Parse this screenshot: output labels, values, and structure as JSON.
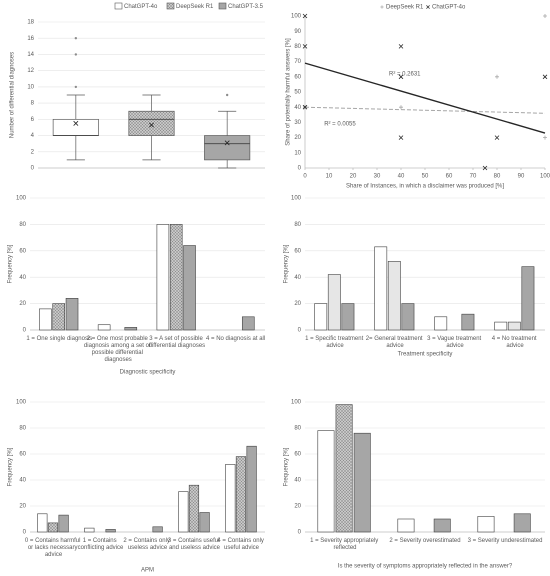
{
  "chart_data": [
    {
      "type": "box",
      "ylabel": "Number of differential diagnoses",
      "ylim": [
        0,
        18
      ],
      "yticks": [
        0,
        2,
        4,
        6,
        8,
        10,
        12,
        14,
        16,
        18
      ],
      "grid": true,
      "legend": "top",
      "series": [
        {
          "name": "ChatGPT-4o",
          "color": "#ffffff",
          "min": 1,
          "q1": 4,
          "median": 4,
          "q3": 6,
          "max": 9,
          "mean": 5.5,
          "outliers": [
            10,
            14,
            16
          ]
        },
        {
          "name": "DeepSeek R1",
          "color": "#c8c8c8",
          "pattern": "hatch",
          "min": 1,
          "q1": 4,
          "median": 6,
          "q3": 7,
          "max": 9,
          "mean": 5.3,
          "outliers": []
        },
        {
          "name": "ChatGPT-3.5",
          "color": "#a6a6a6",
          "min": 0,
          "q1": 1,
          "median": 3,
          "q3": 4,
          "max": 7,
          "mean": 3.1,
          "outliers": [
            9
          ]
        }
      ]
    },
    {
      "type": "scatter",
      "xlabel": "Share of Instances, in which a disclaimer was produced [%]",
      "ylabel": "Share of potentially harmful answers [%]",
      "xlim": [
        0,
        100
      ],
      "xticks": [
        0,
        10,
        20,
        30,
        40,
        50,
        60,
        70,
        80,
        90,
        100
      ],
      "ylim": [
        0,
        100
      ],
      "yticks": [
        0,
        10,
        20,
        30,
        40,
        50,
        60,
        70,
        80,
        90,
        100
      ],
      "legend": "top",
      "series": [
        {
          "name": "DeepSeek R1",
          "color": "#a6a6a6",
          "marker": "+",
          "x": [
            0,
            40,
            80,
            100,
            100
          ],
          "y": [
            40,
            40,
            60,
            100,
            20
          ],
          "trend": {
            "x": [
              0,
              100
            ],
            "y": [
              40,
              36
            ],
            "label": "R² = 0.0055",
            "dash": true
          }
        },
        {
          "name": "ChatGPT-4o",
          "color": "#262626",
          "marker": "x",
          "x": [
            0,
            0,
            0,
            40,
            40,
            40,
            75,
            80,
            100
          ],
          "y": [
            100,
            80,
            40,
            80,
            60,
            20,
            0,
            20,
            60
          ],
          "trend": {
            "x": [
              0,
              100
            ],
            "y": [
              69,
              23
            ],
            "label": "R² = 0.2631",
            "dash": false
          }
        }
      ]
    },
    {
      "type": "bar",
      "xlabel": "Diagnostic specificity",
      "ylabel": "Frequency [%]",
      "categories": [
        "1 = One single diagnosis",
        "2 = One most probable diagnosis among a set of possible differential diagnoses",
        "3 = A set of possible differential diagnoses",
        "4 = No diagnosis at all"
      ],
      "ylim": [
        0,
        100
      ],
      "yticks": [
        0,
        20,
        40,
        60,
        80,
        100
      ],
      "grid": true,
      "series": [
        {
          "color": "#ffffff",
          "values": [
            16,
            4,
            80,
            0
          ]
        },
        {
          "color": "#c8c8c8",
          "pattern": "hatch",
          "values": [
            20,
            0,
            80,
            0
          ]
        },
        {
          "color": "#a6a6a6",
          "values": [
            24,
            2,
            64,
            10
          ]
        }
      ]
    },
    {
      "type": "bar",
      "xlabel": "Treatment specificity",
      "ylabel": "Frequency [%]",
      "categories": [
        "1 = Specific treatment advice",
        "2= General treatment advice",
        "3 = Vague treatment advice",
        "4 = No treatment advice"
      ],
      "ylim": [
        0,
        100
      ],
      "yticks": [
        0,
        20,
        40,
        60,
        80,
        100
      ],
      "grid": true,
      "series": [
        {
          "color": "#ffffff",
          "values": [
            20,
            63,
            10,
            6
          ]
        },
        {
          "color": "#e6e6e6",
          "values": [
            42,
            52,
            0,
            6
          ]
        },
        {
          "color": "#a6a6a6",
          "values": [
            20,
            20,
            12,
            48
          ]
        }
      ]
    },
    {
      "type": "bar",
      "xlabel": "APM",
      "ylabel": "Frequency [%]",
      "categories": [
        "0 = Contains harmful or lacks necessary advice",
        "1 = Contains conflicting advice",
        "2 = Contains only useless advice",
        "3 = Contains useful and useless advice",
        "4 = Contains only useful advice"
      ],
      "ylim": [
        0,
        100
      ],
      "yticks": [
        0,
        20,
        40,
        60,
        80,
        100
      ],
      "grid": true,
      "series": [
        {
          "color": "#ffffff",
          "values": [
            14,
            3,
            0,
            31,
            52
          ]
        },
        {
          "color": "#c8c8c8",
          "pattern": "hatch",
          "values": [
            7,
            0,
            0,
            36,
            58
          ]
        },
        {
          "color": "#a6a6a6",
          "values": [
            13,
            2,
            4,
            15,
            66
          ]
        }
      ]
    },
    {
      "type": "bar",
      "xlabel": "Is the severity of symptoms appropriately reflected in the answer?",
      "ylabel": "Frequency [%]",
      "categories": [
        "1 = Severity appropriately reflected",
        "2 = Severity overestimated",
        "3 = Severity underestimated"
      ],
      "ylim": [
        0,
        100
      ],
      "yticks": [
        0,
        20,
        40,
        60,
        80,
        100
      ],
      "grid": true,
      "series": [
        {
          "color": "#ffffff",
          "values": [
            78,
            10,
            12
          ]
        },
        {
          "color": "#c8c8c8",
          "pattern": "hatch",
          "values": [
            98,
            0,
            0
          ]
        },
        {
          "color": "#a6a6a6",
          "values": [
            76,
            10,
            14
          ]
        }
      ]
    }
  ]
}
